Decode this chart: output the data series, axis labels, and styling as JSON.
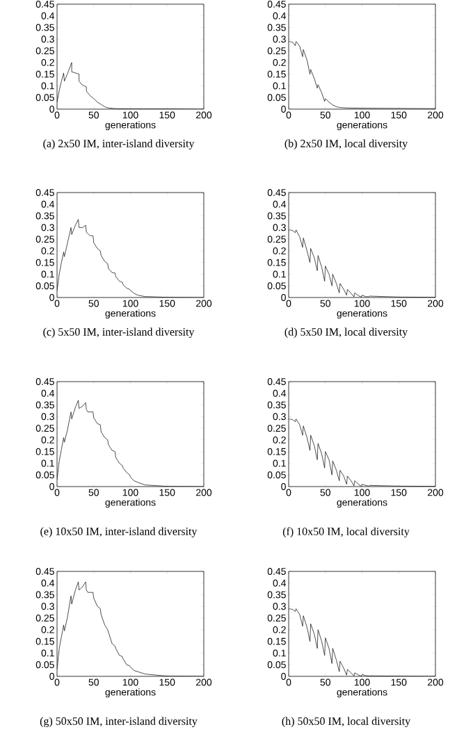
{
  "chart_data": [
    {
      "type": "line",
      "title": "(a) 2x50 IM, inter-island diversity",
      "xlabel": "generations",
      "color": "#000000",
      "marker": "none",
      "line_style": "solid",
      "xlim": [
        0,
        200
      ],
      "ylim": [
        0,
        0.45
      ],
      "xticks": [
        0,
        50,
        100,
        150,
        200
      ],
      "yticks": [
        0,
        0.05,
        0.1,
        0.15,
        0.2,
        0.25,
        0.3,
        0.35,
        0.4,
        0.45
      ],
      "x": [
        0,
        3,
        6,
        9,
        10,
        14,
        20,
        20,
        25,
        30,
        30,
        34,
        37,
        40,
        40,
        45,
        50,
        55,
        60,
        65,
        70,
        80,
        100,
        150,
        200
      ],
      "values": [
        0.03,
        0.08,
        0.12,
        0.155,
        0.12,
        0.15,
        0.2,
        0.16,
        0.155,
        0.15,
        0.12,
        0.105,
        0.1,
        0.095,
        0.077,
        0.058,
        0.045,
        0.03,
        0.02,
        0.01,
        0.005,
        0.002,
        0.001,
        0.001,
        0
      ]
    },
    {
      "type": "line",
      "title": "(b) 2x50 IM, local diversity",
      "xlabel": "generations",
      "color": "#000000",
      "marker": "none",
      "line_style": "solid",
      "xlim": [
        0,
        200
      ],
      "ylim": [
        0,
        0.45
      ],
      "xticks": [
        0,
        50,
        100,
        150,
        200
      ],
      "yticks": [
        0,
        0.05,
        0.1,
        0.15,
        0.2,
        0.25,
        0.3,
        0.35,
        0.4,
        0.45
      ],
      "x": [
        0,
        5,
        9,
        10,
        15,
        19,
        20,
        25,
        29,
        30,
        35,
        39,
        40,
        45,
        49,
        50,
        55,
        60,
        65,
        70,
        80,
        100,
        150,
        200
      ],
      "values": [
        0.29,
        0.288,
        0.272,
        0.29,
        0.27,
        0.225,
        0.255,
        0.21,
        0.15,
        0.17,
        0.13,
        0.09,
        0.105,
        0.07,
        0.033,
        0.045,
        0.03,
        0.018,
        0.01,
        0.007,
        0.005,
        0.004,
        0.003,
        0.002
      ]
    },
    {
      "type": "line",
      "title": "(c) 5x50 IM, inter-island diversity",
      "xlabel": "generations",
      "color": "#000000",
      "marker": "none",
      "line_style": "solid",
      "xlim": [
        0,
        200
      ],
      "ylim": [
        0,
        0.45
      ],
      "xticks": [
        0,
        50,
        100,
        150,
        200
      ],
      "yticks": [
        0,
        0.05,
        0.1,
        0.15,
        0.2,
        0.25,
        0.3,
        0.35,
        0.4,
        0.45
      ],
      "x": [
        0,
        3,
        6,
        9,
        10,
        14,
        19,
        20,
        25,
        29,
        30,
        35,
        39,
        40,
        45,
        49,
        50,
        55,
        59,
        60,
        65,
        69,
        70,
        75,
        79,
        80,
        85,
        89,
        90,
        95,
        99,
        100,
        105,
        110,
        120,
        150,
        200
      ],
      "values": [
        0.03,
        0.1,
        0.15,
        0.195,
        0.175,
        0.23,
        0.3,
        0.27,
        0.31,
        0.335,
        0.3,
        0.3,
        0.31,
        0.28,
        0.265,
        0.265,
        0.235,
        0.21,
        0.2,
        0.18,
        0.155,
        0.145,
        0.125,
        0.107,
        0.105,
        0.09,
        0.07,
        0.065,
        0.055,
        0.04,
        0.035,
        0.03,
        0.018,
        0.01,
        0.004,
        0.001,
        0
      ]
    },
    {
      "type": "line",
      "title": "(d) 5x50 IM, local diversity",
      "xlabel": "generations",
      "color": "#000000",
      "marker": "none",
      "line_style": "solid",
      "xlim": [
        0,
        200
      ],
      "ylim": [
        0,
        0.45
      ],
      "xticks": [
        0,
        50,
        100,
        150,
        200
      ],
      "yticks": [
        0,
        0.05,
        0.1,
        0.15,
        0.2,
        0.25,
        0.3,
        0.35,
        0.4,
        0.45
      ],
      "x": [
        0,
        5,
        9,
        10,
        15,
        19,
        20,
        25,
        29,
        30,
        35,
        39,
        40,
        45,
        49,
        50,
        55,
        59,
        60,
        65,
        69,
        70,
        75,
        79,
        80,
        85,
        89,
        90,
        95,
        99,
        100,
        105,
        109,
        110,
        150,
        200
      ],
      "values": [
        0.29,
        0.288,
        0.278,
        0.29,
        0.26,
        0.215,
        0.255,
        0.2,
        0.15,
        0.21,
        0.17,
        0.115,
        0.18,
        0.13,
        0.07,
        0.135,
        0.1,
        0.05,
        0.1,
        0.06,
        0.02,
        0.06,
        0.035,
        0.01,
        0.035,
        0.018,
        0.003,
        0.02,
        0.008,
        0.002,
        0.01,
        0.004,
        0.003,
        0.006,
        0.002,
        0.001
      ]
    },
    {
      "type": "line",
      "title": "(e) 10x50 IM, inter-island diversity",
      "xlabel": "generations",
      "color": "#000000",
      "marker": "none",
      "line_style": "solid",
      "xlim": [
        0,
        200
      ],
      "ylim": [
        0,
        0.45
      ],
      "xticks": [
        0,
        50,
        100,
        150,
        200
      ],
      "yticks": [
        0,
        0.05,
        0.1,
        0.15,
        0.2,
        0.25,
        0.3,
        0.35,
        0.4,
        0.45
      ],
      "x": [
        0,
        3,
        6,
        9,
        10,
        14,
        19,
        20,
        25,
        29,
        30,
        35,
        39,
        40,
        42,
        49,
        50,
        55,
        59,
        60,
        65,
        69,
        70,
        75,
        79,
        80,
        85,
        89,
        90,
        95,
        99,
        100,
        105,
        110,
        120,
        150,
        200
      ],
      "values": [
        0.03,
        0.11,
        0.16,
        0.21,
        0.19,
        0.24,
        0.32,
        0.29,
        0.34,
        0.37,
        0.335,
        0.345,
        0.36,
        0.33,
        0.32,
        0.32,
        0.295,
        0.27,
        0.265,
        0.235,
        0.21,
        0.2,
        0.18,
        0.155,
        0.15,
        0.125,
        0.1,
        0.09,
        0.08,
        0.06,
        0.05,
        0.04,
        0.025,
        0.018,
        0.007,
        0.001,
        0
      ]
    },
    {
      "type": "line",
      "title": "(f) 10x50 IM, local diversity",
      "xlabel": "generations",
      "color": "#000000",
      "marker": "none",
      "line_style": "solid",
      "xlim": [
        0,
        200
      ],
      "ylim": [
        0,
        0.45
      ],
      "xticks": [
        0,
        50,
        100,
        150,
        200
      ],
      "yticks": [
        0,
        0.05,
        0.1,
        0.15,
        0.2,
        0.25,
        0.3,
        0.35,
        0.4,
        0.45
      ],
      "x": [
        0,
        5,
        9,
        10,
        15,
        19,
        20,
        25,
        29,
        30,
        35,
        39,
        40,
        45,
        49,
        50,
        55,
        59,
        60,
        65,
        69,
        70,
        75,
        79,
        80,
        85,
        89,
        90,
        95,
        99,
        100,
        105,
        109,
        110,
        150,
        200
      ],
      "values": [
        0.29,
        0.288,
        0.278,
        0.29,
        0.265,
        0.22,
        0.26,
        0.21,
        0.155,
        0.22,
        0.175,
        0.115,
        0.185,
        0.14,
        0.08,
        0.15,
        0.115,
        0.05,
        0.11,
        0.07,
        0.025,
        0.07,
        0.045,
        0.01,
        0.045,
        0.025,
        0.003,
        0.025,
        0.01,
        0.001,
        0.01,
        0.005,
        0.002,
        0.005,
        0.002,
        0.001
      ]
    },
    {
      "type": "line",
      "title": "(g) 50x50 IM, inter-island diversity",
      "xlabel": "generations",
      "color": "#000000",
      "marker": "none",
      "line_style": "solid",
      "xlim": [
        0,
        200
      ],
      "ylim": [
        0,
        0.45
      ],
      "xticks": [
        0,
        50,
        100,
        150,
        200
      ],
      "yticks": [
        0,
        0.05,
        0.1,
        0.15,
        0.2,
        0.25,
        0.3,
        0.35,
        0.4,
        0.45
      ],
      "x": [
        0,
        3,
        6,
        9,
        10,
        14,
        19,
        20,
        25,
        29,
        30,
        35,
        39,
        40,
        42,
        49,
        50,
        55,
        59,
        60,
        65,
        69,
        70,
        75,
        79,
        80,
        85,
        89,
        90,
        95,
        99,
        100,
        105,
        110,
        120,
        150,
        200
      ],
      "values": [
        0.03,
        0.12,
        0.17,
        0.22,
        0.195,
        0.25,
        0.345,
        0.31,
        0.37,
        0.405,
        0.37,
        0.385,
        0.405,
        0.37,
        0.36,
        0.36,
        0.335,
        0.3,
        0.29,
        0.265,
        0.22,
        0.2,
        0.19,
        0.14,
        0.13,
        0.12,
        0.09,
        0.085,
        0.075,
        0.05,
        0.045,
        0.04,
        0.025,
        0.02,
        0.01,
        0.001,
        0
      ]
    },
    {
      "type": "line",
      "title": "(h) 50x50 IM, local diversity",
      "xlabel": "generations",
      "color": "#000000",
      "marker": "none",
      "line_style": "solid",
      "xlim": [
        0,
        200
      ],
      "ylim": [
        0,
        0.45
      ],
      "xticks": [
        0,
        50,
        100,
        150,
        200
      ],
      "yticks": [
        0,
        0.05,
        0.1,
        0.15,
        0.2,
        0.25,
        0.3,
        0.35,
        0.4,
        0.45
      ],
      "x": [
        0,
        5,
        9,
        10,
        15,
        19,
        20,
        25,
        29,
        30,
        35,
        39,
        40,
        45,
        49,
        50,
        55,
        59,
        60,
        65,
        69,
        70,
        75,
        79,
        80,
        85,
        89,
        90,
        95,
        99,
        100,
        105,
        109,
        110,
        150,
        200
      ],
      "values": [
        0.29,
        0.288,
        0.278,
        0.29,
        0.265,
        0.215,
        0.26,
        0.21,
        0.15,
        0.225,
        0.18,
        0.12,
        0.2,
        0.15,
        0.09,
        0.165,
        0.12,
        0.055,
        0.12,
        0.07,
        0.02,
        0.065,
        0.035,
        0.005,
        0.03,
        0.015,
        0.002,
        0.015,
        0.006,
        0.001,
        0.008,
        0.003,
        0.002,
        0.002,
        0.001,
        0
      ]
    }
  ]
}
